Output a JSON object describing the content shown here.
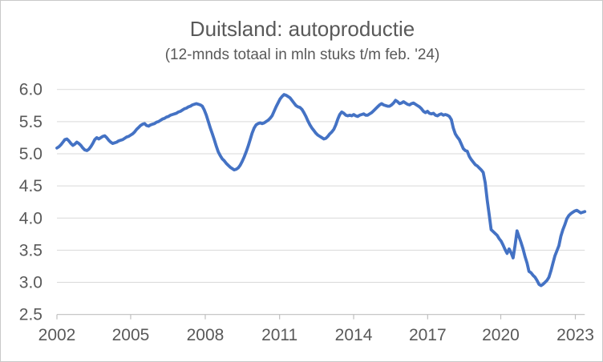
{
  "chart_data": {
    "type": "line",
    "title": "Duitsland: autoproductie",
    "subtitle": "(12-mnds totaal in mln stuks t/m feb. '24)",
    "frequency": "monthly",
    "x_start": "2002-01",
    "x_end": "2024-02",
    "x_tick_labels": [
      "2002",
      "2005",
      "2008",
      "2011",
      "2014",
      "2017",
      "2020",
      "2023"
    ],
    "y_tick_labels": [
      "2.5",
      "3.0",
      "3.5",
      "4.0",
      "4.5",
      "5.0",
      "5.5",
      "6.0"
    ],
    "ylim": [
      2.5,
      6.0
    ],
    "grid": "horizontal",
    "legend": "none",
    "series": [
      {
        "name": "Duitse autoproductie (12-mnds totaal, mln stuks)",
        "color": "#4472C4",
        "values": [
          5.09,
          5.11,
          5.14,
          5.18,
          5.22,
          5.23,
          5.2,
          5.16,
          5.13,
          5.15,
          5.18,
          5.16,
          5.13,
          5.09,
          5.06,
          5.05,
          5.07,
          5.11,
          5.16,
          5.22,
          5.25,
          5.23,
          5.25,
          5.27,
          5.28,
          5.25,
          5.21,
          5.18,
          5.16,
          5.17,
          5.18,
          5.2,
          5.21,
          5.22,
          5.24,
          5.26,
          5.27,
          5.29,
          5.31,
          5.34,
          5.38,
          5.41,
          5.44,
          5.46,
          5.47,
          5.44,
          5.43,
          5.45,
          5.46,
          5.47,
          5.49,
          5.5,
          5.52,
          5.54,
          5.55,
          5.57,
          5.58,
          5.6,
          5.61,
          5.62,
          5.63,
          5.65,
          5.66,
          5.68,
          5.7,
          5.71,
          5.73,
          5.74,
          5.76,
          5.77,
          5.78,
          5.77,
          5.76,
          5.74,
          5.68,
          5.6,
          5.5,
          5.4,
          5.31,
          5.22,
          5.12,
          5.03,
          4.97,
          4.92,
          4.89,
          4.85,
          4.82,
          4.79,
          4.77,
          4.75,
          4.76,
          4.78,
          4.82,
          4.88,
          4.95,
          5.03,
          5.12,
          5.22,
          5.32,
          5.4,
          5.45,
          5.47,
          5.48,
          5.47,
          5.48,
          5.5,
          5.52,
          5.55,
          5.59,
          5.66,
          5.73,
          5.79,
          5.85,
          5.89,
          5.92,
          5.91,
          5.89,
          5.87,
          5.83,
          5.79,
          5.75,
          5.73,
          5.72,
          5.69,
          5.64,
          5.58,
          5.51,
          5.45,
          5.4,
          5.36,
          5.32,
          5.29,
          5.27,
          5.25,
          5.23,
          5.24,
          5.27,
          5.31,
          5.34,
          5.38,
          5.45,
          5.54,
          5.61,
          5.65,
          5.63,
          5.6,
          5.59,
          5.6,
          5.59,
          5.61,
          5.59,
          5.58,
          5.6,
          5.61,
          5.62,
          5.6,
          5.6,
          5.62,
          5.64,
          5.67,
          5.7,
          5.73,
          5.76,
          5.78,
          5.76,
          5.75,
          5.74,
          5.74,
          5.76,
          5.79,
          5.83,
          5.81,
          5.78,
          5.79,
          5.81,
          5.79,
          5.77,
          5.76,
          5.78,
          5.79,
          5.77,
          5.75,
          5.73,
          5.7,
          5.66,
          5.64,
          5.66,
          5.63,
          5.62,
          5.63,
          5.6,
          5.59,
          5.61,
          5.62,
          5.6,
          5.61,
          5.6,
          5.58,
          5.53,
          5.4,
          5.31,
          5.26,
          5.22,
          5.15,
          5.08,
          5.05,
          5.04,
          4.96,
          4.91,
          4.87,
          4.83,
          4.81,
          4.78,
          4.75,
          4.71,
          4.55,
          4.28,
          4.05,
          3.82,
          3.79,
          3.76,
          3.73,
          3.68,
          3.64,
          3.58,
          3.51,
          3.45,
          3.52,
          3.46,
          3.38,
          3.58,
          3.8,
          3.71,
          3.62,
          3.52,
          3.4,
          3.3,
          3.17,
          3.15,
          3.11,
          3.08,
          3.03,
          2.97,
          2.95,
          2.97,
          3.0,
          3.03,
          3.08,
          3.18,
          3.3,
          3.41,
          3.49,
          3.57,
          3.72,
          3.82,
          3.9,
          3.99,
          4.04,
          4.07,
          4.09,
          4.11,
          4.12,
          4.1,
          4.08,
          4.09,
          4.1
        ]
      }
    ]
  },
  "colors": {
    "line": "#4472C4",
    "grid": "#D9D9D9",
    "axis": "#BFBFBF",
    "text": "#595959",
    "background": "#FFFFFF",
    "border": "#C9C9C9"
  }
}
